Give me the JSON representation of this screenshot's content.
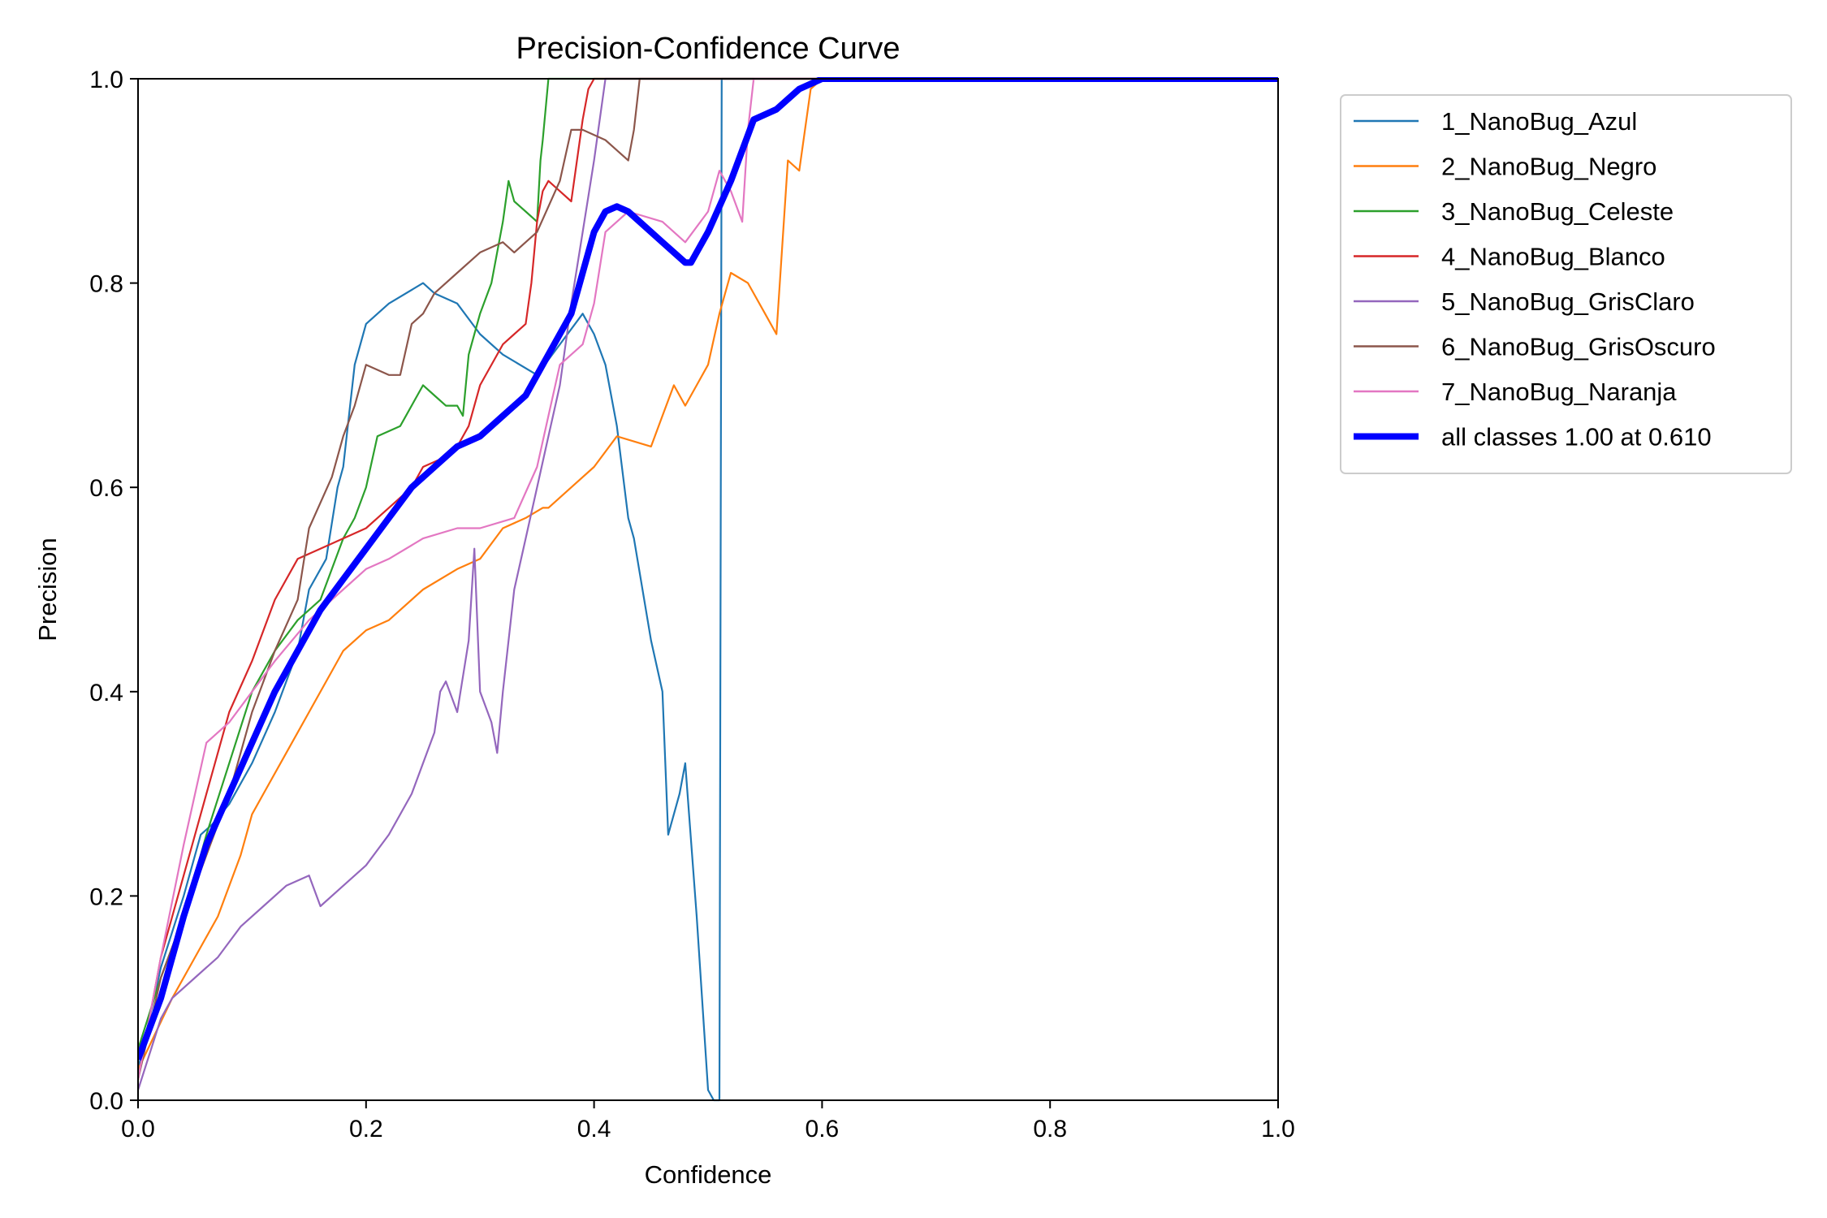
{
  "chart_data": {
    "type": "line",
    "title": "Precision-Confidence Curve",
    "xlabel": "Confidence",
    "ylabel": "Precision",
    "xlim": [
      0,
      1
    ],
    "ylim": [
      0,
      1
    ],
    "xticks": [
      "0.0",
      "0.2",
      "0.4",
      "0.6",
      "0.8",
      "1.0"
    ],
    "yticks": [
      "0.0",
      "0.2",
      "0.4",
      "0.6",
      "0.8",
      "1.0"
    ],
    "grid": false,
    "legend_position": "outside-top-right",
    "series": [
      {
        "name": "1_NanoBug_Azul",
        "color": "#1f77b4",
        "x": [
          0.0,
          0.02,
          0.04,
          0.055,
          0.065,
          0.08,
          0.1,
          0.12,
          0.14,
          0.15,
          0.165,
          0.175,
          0.18,
          0.19,
          0.2,
          0.22,
          0.25,
          0.26,
          0.28,
          0.3,
          0.32,
          0.35,
          0.37,
          0.39,
          0.4,
          0.41,
          0.42,
          0.43,
          0.435,
          0.45,
          0.46,
          0.465,
          0.475,
          0.48,
          0.49,
          0.5,
          0.505,
          0.51,
          0.512,
          0.52,
          0.6,
          1.0
        ],
        "y": [
          0.03,
          0.13,
          0.2,
          0.26,
          0.27,
          0.29,
          0.33,
          0.38,
          0.44,
          0.5,
          0.53,
          0.6,
          0.62,
          0.72,
          0.76,
          0.78,
          0.8,
          0.79,
          0.78,
          0.75,
          0.73,
          0.71,
          0.74,
          0.77,
          0.75,
          0.72,
          0.66,
          0.57,
          0.55,
          0.45,
          0.4,
          0.26,
          0.3,
          0.33,
          0.18,
          0.01,
          0.0,
          0.0,
          1.0,
          1.0,
          1.0,
          1.0
        ]
      },
      {
        "name": "2_NanoBug_Negro",
        "color": "#ff7f0e",
        "x": [
          0.0,
          0.03,
          0.05,
          0.07,
          0.09,
          0.1,
          0.11,
          0.13,
          0.15,
          0.17,
          0.18,
          0.2,
          0.22,
          0.25,
          0.28,
          0.3,
          0.32,
          0.34,
          0.355,
          0.36,
          0.38,
          0.4,
          0.42,
          0.45,
          0.46,
          0.47,
          0.48,
          0.49,
          0.5,
          0.51,
          0.52,
          0.535,
          0.55,
          0.56,
          0.57,
          0.58,
          0.59,
          0.6,
          1.0
        ],
        "y": [
          0.03,
          0.1,
          0.14,
          0.18,
          0.24,
          0.28,
          0.3,
          0.34,
          0.38,
          0.42,
          0.44,
          0.46,
          0.47,
          0.5,
          0.52,
          0.53,
          0.56,
          0.57,
          0.58,
          0.58,
          0.6,
          0.62,
          0.65,
          0.64,
          0.67,
          0.7,
          0.68,
          0.7,
          0.72,
          0.77,
          0.81,
          0.8,
          0.77,
          0.75,
          0.92,
          0.91,
          0.99,
          1.0,
          1.0
        ]
      },
      {
        "name": "3_NanoBug_Celeste",
        "color": "#2ca02c",
        "x": [
          0.0,
          0.02,
          0.04,
          0.06,
          0.08,
          0.1,
          0.12,
          0.14,
          0.16,
          0.17,
          0.18,
          0.19,
          0.2,
          0.21,
          0.23,
          0.25,
          0.26,
          0.27,
          0.28,
          0.285,
          0.29,
          0.3,
          0.31,
          0.32,
          0.325,
          0.33,
          0.34,
          0.35,
          0.353,
          0.355,
          0.36,
          1.0
        ],
        "y": [
          0.05,
          0.12,
          0.18,
          0.26,
          0.33,
          0.4,
          0.44,
          0.47,
          0.49,
          0.52,
          0.55,
          0.57,
          0.6,
          0.65,
          0.66,
          0.7,
          0.69,
          0.68,
          0.68,
          0.67,
          0.73,
          0.77,
          0.8,
          0.86,
          0.9,
          0.88,
          0.87,
          0.86,
          0.92,
          0.94,
          1.0,
          1.0
        ]
      },
      {
        "name": "4_NanoBug_Blanco",
        "color": "#d62728",
        "x": [
          0.0,
          0.02,
          0.04,
          0.06,
          0.08,
          0.1,
          0.12,
          0.14,
          0.16,
          0.18,
          0.2,
          0.22,
          0.24,
          0.25,
          0.27,
          0.28,
          0.29,
          0.3,
          0.32,
          0.33,
          0.34,
          0.345,
          0.35,
          0.355,
          0.36,
          0.37,
          0.38,
          0.39,
          0.395,
          0.4,
          1.0
        ],
        "y": [
          0.02,
          0.14,
          0.22,
          0.3,
          0.38,
          0.43,
          0.49,
          0.53,
          0.54,
          0.55,
          0.56,
          0.58,
          0.6,
          0.62,
          0.63,
          0.64,
          0.66,
          0.7,
          0.74,
          0.75,
          0.76,
          0.8,
          0.86,
          0.89,
          0.9,
          0.89,
          0.88,
          0.96,
          0.99,
          1.0,
          1.0
        ]
      },
      {
        "name": "5_NanoBug_GrisClaro",
        "color": "#9467bd",
        "x": [
          0.0,
          0.02,
          0.03,
          0.05,
          0.07,
          0.09,
          0.11,
          0.13,
          0.15,
          0.16,
          0.18,
          0.2,
          0.22,
          0.24,
          0.26,
          0.265,
          0.27,
          0.28,
          0.29,
          0.295,
          0.3,
          0.31,
          0.315,
          0.32,
          0.33,
          0.34,
          0.35,
          0.36,
          0.37,
          0.38,
          0.39,
          0.4,
          0.41,
          1.0
        ],
        "y": [
          0.01,
          0.08,
          0.1,
          0.12,
          0.14,
          0.17,
          0.19,
          0.21,
          0.22,
          0.19,
          0.21,
          0.23,
          0.26,
          0.3,
          0.36,
          0.4,
          0.41,
          0.38,
          0.45,
          0.54,
          0.4,
          0.37,
          0.34,
          0.4,
          0.5,
          0.55,
          0.6,
          0.65,
          0.7,
          0.78,
          0.85,
          0.92,
          1.0,
          1.0
        ]
      },
      {
        "name": "6_NanoBug_GrisOscuro",
        "color": "#8c564b",
        "x": [
          0.0,
          0.02,
          0.04,
          0.06,
          0.08,
          0.1,
          0.12,
          0.14,
          0.15,
          0.17,
          0.18,
          0.19,
          0.2,
          0.22,
          0.23,
          0.24,
          0.25,
          0.26,
          0.28,
          0.3,
          0.32,
          0.33,
          0.35,
          0.37,
          0.38,
          0.39,
          0.41,
          0.42,
          0.43,
          0.435,
          0.44,
          1.0
        ],
        "y": [
          0.02,
          0.12,
          0.18,
          0.24,
          0.3,
          0.38,
          0.44,
          0.49,
          0.56,
          0.61,
          0.65,
          0.68,
          0.72,
          0.71,
          0.71,
          0.76,
          0.77,
          0.79,
          0.81,
          0.83,
          0.84,
          0.83,
          0.85,
          0.9,
          0.95,
          0.95,
          0.94,
          0.93,
          0.92,
          0.95,
          1.0,
          1.0
        ]
      },
      {
        "name": "7_NanoBug_Naranja",
        "color": "#e377c2",
        "x": [
          0.0,
          0.02,
          0.04,
          0.06,
          0.07,
          0.08,
          0.1,
          0.12,
          0.15,
          0.18,
          0.2,
          0.22,
          0.25,
          0.28,
          0.3,
          0.33,
          0.35,
          0.36,
          0.37,
          0.38,
          0.39,
          0.4,
          0.41,
          0.42,
          0.43,
          0.46,
          0.48,
          0.5,
          0.51,
          0.52,
          0.53,
          0.535,
          0.54,
          1.0
        ],
        "y": [
          0.02,
          0.14,
          0.25,
          0.35,
          0.36,
          0.37,
          0.4,
          0.43,
          0.47,
          0.5,
          0.52,
          0.53,
          0.55,
          0.56,
          0.56,
          0.57,
          0.62,
          0.67,
          0.72,
          0.73,
          0.74,
          0.78,
          0.85,
          0.86,
          0.87,
          0.86,
          0.84,
          0.87,
          0.91,
          0.89,
          0.86,
          0.95,
          1.0,
          1.0
        ]
      },
      {
        "name": "all classes 1.00 at 0.610",
        "color": "#0000ff",
        "bold": true,
        "x": [
          0.0,
          0.02,
          0.04,
          0.06,
          0.08,
          0.1,
          0.12,
          0.14,
          0.16,
          0.18,
          0.2,
          0.22,
          0.24,
          0.26,
          0.28,
          0.3,
          0.32,
          0.34,
          0.36,
          0.38,
          0.4,
          0.41,
          0.42,
          0.43,
          0.44,
          0.46,
          0.47,
          0.48,
          0.485,
          0.5,
          0.52,
          0.54,
          0.55,
          0.56,
          0.58,
          0.6,
          0.61,
          0.7,
          1.0
        ],
        "y": [
          0.04,
          0.1,
          0.18,
          0.25,
          0.3,
          0.35,
          0.4,
          0.44,
          0.48,
          0.51,
          0.54,
          0.57,
          0.6,
          0.62,
          0.64,
          0.65,
          0.67,
          0.69,
          0.73,
          0.77,
          0.85,
          0.87,
          0.875,
          0.87,
          0.86,
          0.84,
          0.83,
          0.82,
          0.82,
          0.85,
          0.9,
          0.96,
          0.965,
          0.97,
          0.99,
          1.0,
          1.0,
          1.0,
          1.0
        ]
      }
    ]
  }
}
